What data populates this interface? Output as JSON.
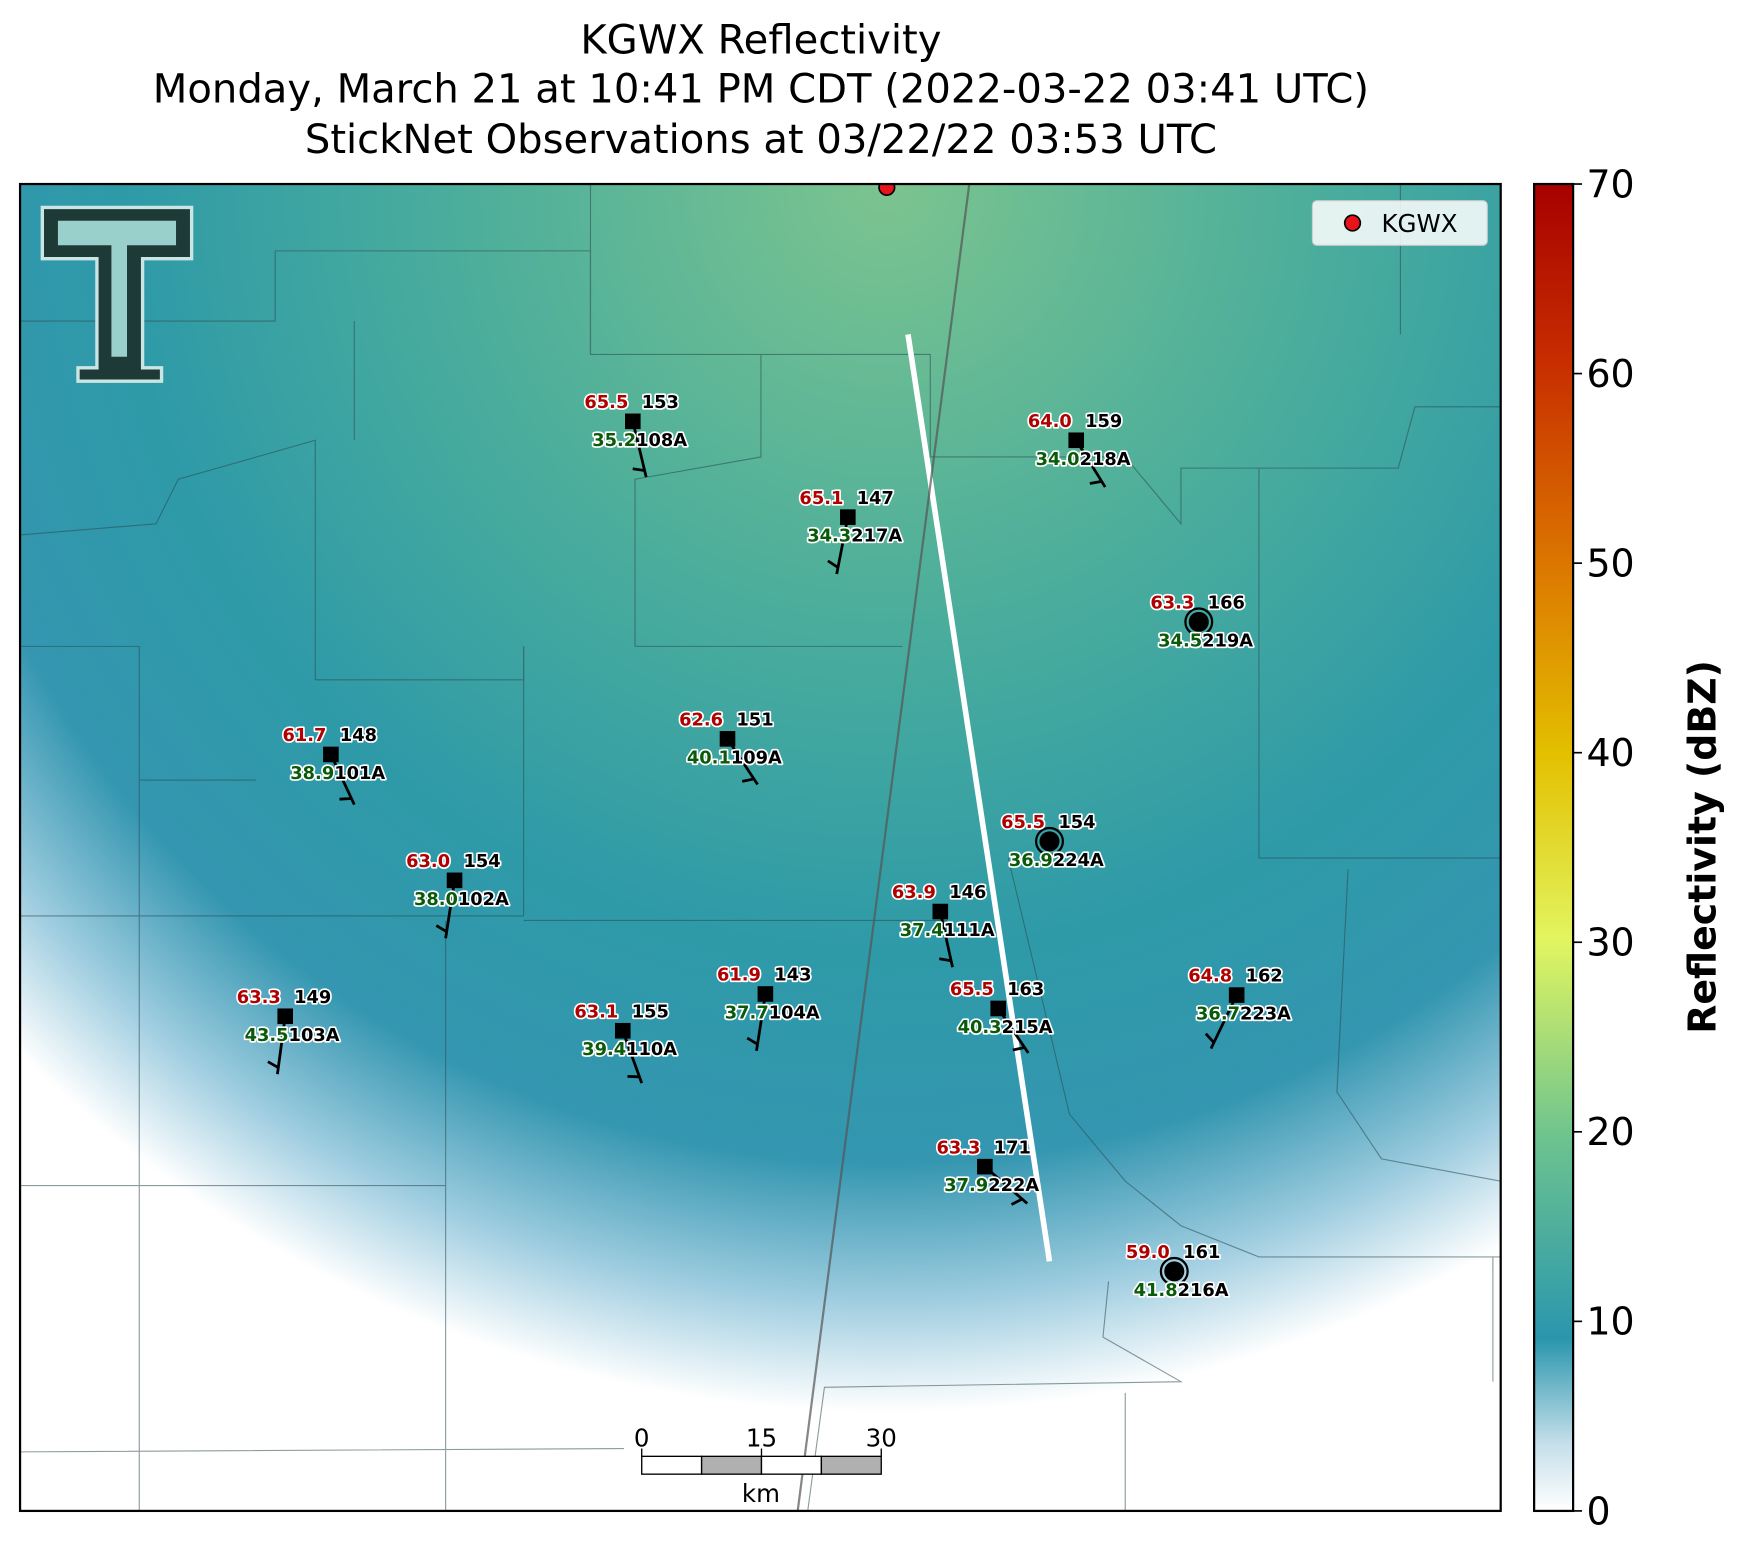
{
  "title": {
    "line1": "KGWX Reflectivity",
    "line2": "Monday, March 21 at 10:41 PM CDT (2022-03-22 03:41 UTC)",
    "line3": "StickNet Observations at 03/22/22 03:53 UTC"
  },
  "legend": {
    "label": "KGWX",
    "color": "#e8141c"
  },
  "stations": [
    {
      "id": "108A",
      "temp": "65.5",
      "pressure": "153",
      "dewpoint": "35.2"
    },
    {
      "id": "217A",
      "temp": "65.1",
      "pressure": "147",
      "dewpoint": "34.3"
    },
    {
      "id": "218A",
      "temp": "64.0",
      "pressure": "159",
      "dewpoint": "34.0"
    },
    {
      "id": "219A",
      "temp": "63.3",
      "pressure": "166",
      "dewpoint": "34.5"
    },
    {
      "id": "101A",
      "temp": "61.7",
      "pressure": "148",
      "dewpoint": "38.9"
    },
    {
      "id": "109A",
      "temp": "62.6",
      "pressure": "151",
      "dewpoint": "40.1"
    },
    {
      "id": "224A",
      "temp": "65.5",
      "pressure": "154",
      "dewpoint": "36.9"
    },
    {
      "id": "102A",
      "temp": "63.0",
      "pressure": "154",
      "dewpoint": "38.0"
    },
    {
      "id": "111A",
      "temp": "63.9",
      "pressure": "146",
      "dewpoint": "37.4"
    },
    {
      "id": "104A",
      "temp": "61.9",
      "pressure": "143",
      "dewpoint": "37.7"
    },
    {
      "id": "215A",
      "temp": "65.5",
      "pressure": "163",
      "dewpoint": "40.3"
    },
    {
      "id": "223A",
      "temp": "64.8",
      "pressure": "162",
      "dewpoint": "36.7"
    },
    {
      "id": "103A",
      "temp": "63.3",
      "pressure": "149",
      "dewpoint": "43.5"
    },
    {
      "id": "110A",
      "temp": "63.1",
      "pressure": "155",
      "dewpoint": "39.4"
    },
    {
      "id": "222A",
      "temp": "63.3",
      "pressure": "171",
      "dewpoint": "37.9"
    },
    {
      "id": "216A",
      "temp": "59.0",
      "pressure": "161",
      "dewpoint": "41.8"
    }
  ],
  "colorbar": {
    "label": "Reflectivity (dBZ)",
    "lim": [
      0,
      70
    ],
    "ticks": [
      0,
      10,
      20,
      30,
      40,
      50,
      60,
      70
    ]
  },
  "scale_bar": {
    "lim": [
      0,
      30
    ],
    "ticks": [
      0,
      15,
      30
    ],
    "unit": "km"
  }
}
